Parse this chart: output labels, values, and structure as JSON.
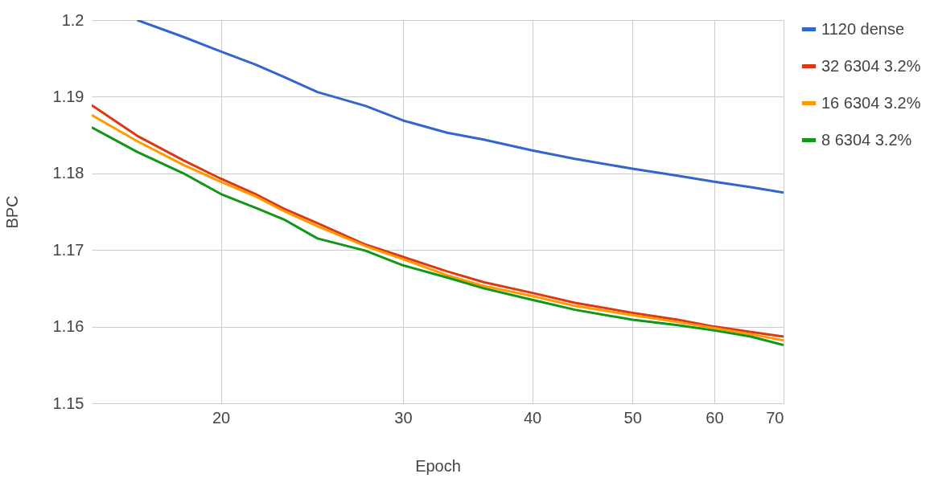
{
  "chart_data": {
    "type": "line",
    "xlabel": "Epoch",
    "ylabel": "BPC",
    "log": "x",
    "xlim": [
      15,
      70
    ],
    "xticks": [
      20,
      30,
      40,
      50,
      60,
      70
    ],
    "ylim": [
      1.15,
      1.2
    ],
    "yticks": [
      1.15,
      1.16,
      1.17,
      1.18,
      1.19,
      1.2
    ],
    "grid": true,
    "legend": "right",
    "line_style": "solid",
    "marker": "none",
    "x": [
      15,
      16.6,
      18.4,
      20,
      21.6,
      23.0,
      24.8,
      27.6,
      30,
      33.1,
      35.9,
      40,
      44,
      50,
      55.3,
      60,
      65.1,
      70
    ],
    "series": [
      {
        "name": "1120 dense",
        "color": "#3366cc",
        "values": [
          null,
          1.2,
          1.1978,
          1.1959,
          1.1942,
          1.1926,
          1.1906,
          1.1888,
          1.1869,
          1.1853,
          1.1844,
          1.183,
          1.1819,
          1.1806,
          1.1797,
          1.1789,
          1.1782,
          1.1775
        ]
      },
      {
        "name": "32 6304 3.2%",
        "color": "#dc3912",
        "values": [
          1.1889,
          1.1849,
          1.1817,
          1.1793,
          1.1773,
          1.1754,
          1.1735,
          1.1707,
          1.1691,
          1.1672,
          1.1658,
          1.1644,
          1.1631,
          1.1618,
          1.1609,
          1.16,
          1.1593,
          1.1587
        ]
      },
      {
        "name": "16 6304 3.2%",
        "color": "#ff9900",
        "values": [
          1.1876,
          1.1842,
          1.1811,
          1.1789,
          1.177,
          1.1751,
          1.1731,
          1.1705,
          1.1688,
          1.1667,
          1.1653,
          1.164,
          1.1627,
          1.1615,
          1.1606,
          1.1598,
          1.159,
          1.1582
        ]
      },
      {
        "name": "8 6304 3.2%",
        "color": "#109618",
        "values": [
          1.186,
          1.1828,
          1.18,
          1.1773,
          1.1755,
          1.174,
          1.1715,
          1.1699,
          1.168,
          1.1664,
          1.165,
          1.1635,
          1.1622,
          1.1609,
          1.1602,
          1.1595,
          1.1587,
          1.1576
        ]
      }
    ]
  }
}
